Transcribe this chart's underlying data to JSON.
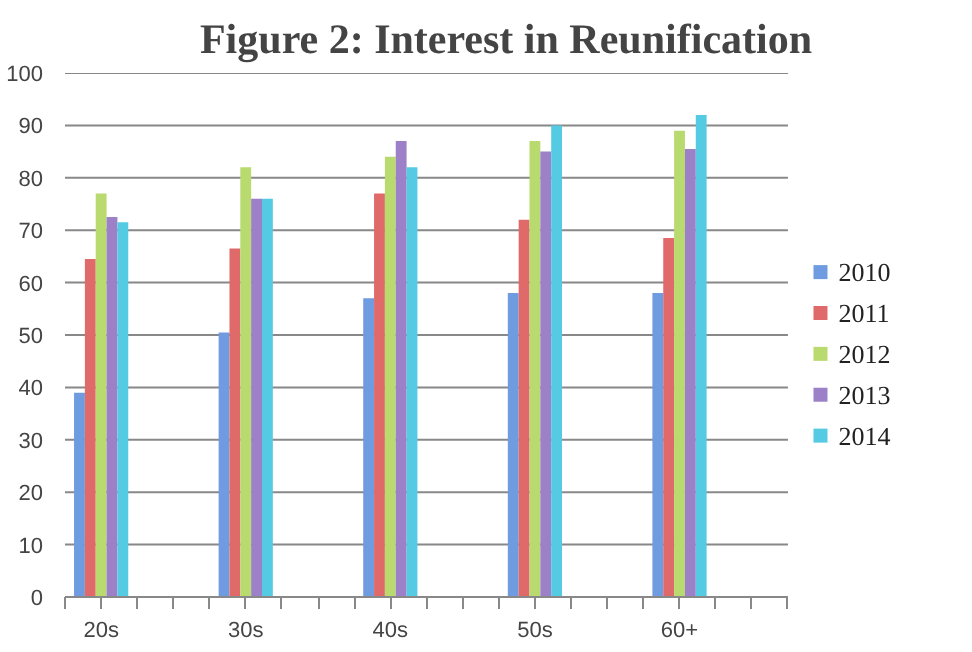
{
  "chart_data": {
    "type": "bar",
    "title": "Figure 2: Interest in Reunification",
    "categories": [
      "20s",
      null,
      "30s",
      null,
      "40s",
      null,
      "50s",
      null,
      "60+",
      null
    ],
    "series": [
      {
        "name": "2010",
        "color": "#6f9be0",
        "values": [
          39,
          null,
          50.5,
          null,
          57,
          null,
          58,
          null,
          58,
          null
        ]
      },
      {
        "name": "2011",
        "color": "#e06a6a",
        "values": [
          64.5,
          null,
          66.5,
          null,
          77,
          null,
          72,
          null,
          68.5,
          null
        ]
      },
      {
        "name": "2012",
        "color": "#b9da6e",
        "values": [
          77,
          null,
          82,
          null,
          84,
          null,
          87,
          null,
          89,
          null
        ]
      },
      {
        "name": "2013",
        "color": "#9c80c8",
        "values": [
          72.5,
          null,
          76,
          null,
          87,
          null,
          85,
          null,
          85.5,
          null
        ]
      },
      {
        "name": "2014",
        "color": "#55cbe3",
        "values": [
          71.5,
          null,
          76,
          null,
          82,
          null,
          90,
          null,
          92,
          null
        ]
      }
    ],
    "ylim": [
      0,
      100
    ],
    "yticks": [
      0,
      10,
      20,
      30,
      40,
      50,
      60,
      70,
      80,
      90,
      100
    ],
    "grid": "y",
    "legend": "right"
  }
}
